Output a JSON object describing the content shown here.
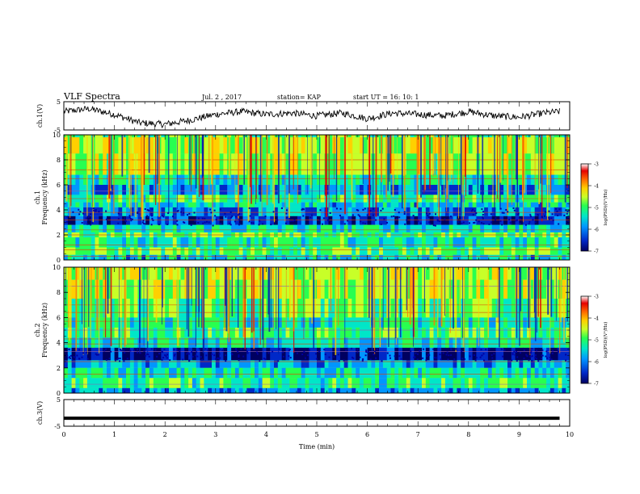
{
  "header": {
    "title": "VLF Spectra",
    "date": "Jul. 2 , 2017",
    "station": "station= KAP",
    "start": "start UT = 16: 10: 1"
  },
  "colors": {
    "colormap": [
      "#ffffff",
      "#e60000",
      "#ff6a00",
      "#ffd000",
      "#c8ff28",
      "#28ff50",
      "#00e6c8",
      "#0096ff",
      "#0028c8",
      "#000060"
    ],
    "trace": "#000000"
  },
  "chart_data": [
    {
      "type": "line",
      "panel": "ch1-waveform",
      "ylabel": "ch.1(V)",
      "ylim": [
        -5,
        5
      ],
      "yticks": [
        "5",
        "-5"
      ],
      "xlim": [
        0,
        10
      ],
      "x": [
        0,
        0.5,
        1.0,
        1.5,
        2.0,
        2.5,
        3.0,
        3.5,
        4.0,
        4.5,
        5.0,
        5.5,
        6.0,
        6.5,
        7.0,
        7.5,
        8.0,
        8.5,
        9.0,
        9.5,
        9.8
      ],
      "y": [
        1.5,
        2.5,
        0.5,
        -2.5,
        -3.0,
        -1.5,
        0.5,
        1.5,
        0.5,
        1.0,
        0.0,
        1.0,
        -1.0,
        1.0,
        0.5,
        0.0,
        1.5,
        0.0,
        -0.5,
        1.0,
        1.5
      ]
    },
    {
      "type": "heatmap",
      "panel": "ch1-spectrogram",
      "ylabel": "ch.1 Frequency (kHz)",
      "ylim": [
        0,
        10
      ],
      "yticks": [
        "0",
        "2",
        "4",
        "6",
        "8",
        "10"
      ],
      "xlim": [
        0,
        10
      ],
      "colorbar": {
        "label": "log(PSD)(V²/Hz)",
        "range": [
          -7,
          -3
        ],
        "ticks": [
          "-3",
          "-4",
          "-5",
          "-6",
          "-7"
        ]
      }
    },
    {
      "type": "heatmap",
      "panel": "ch2-spectrogram",
      "ylabel": "ch.2 Frequency (kHz)",
      "ylim": [
        0,
        10
      ],
      "yticks": [
        "0",
        "2",
        "4",
        "6",
        "8",
        "10"
      ],
      "xlim": [
        0,
        10
      ],
      "colorbar": {
        "label": "log(PSD)(V²/Hz)",
        "range": [
          -7,
          -3
        ],
        "ticks": [
          "-3",
          "-4",
          "-5",
          "-6",
          "-7"
        ]
      }
    },
    {
      "type": "line",
      "panel": "ch3-waveform",
      "ylabel": "ch.3(V)",
      "ylim": [
        -5,
        5
      ],
      "yticks": [
        "5",
        "-5"
      ],
      "xlim": [
        0,
        10
      ],
      "xlabel": "Time (min)",
      "xticks": [
        "0",
        "1",
        "2",
        "3",
        "4",
        "5",
        "6",
        "7",
        "8",
        "9",
        "10"
      ],
      "x": [
        0,
        9.8
      ],
      "y": [
        -2.0,
        -2.0
      ]
    }
  ]
}
